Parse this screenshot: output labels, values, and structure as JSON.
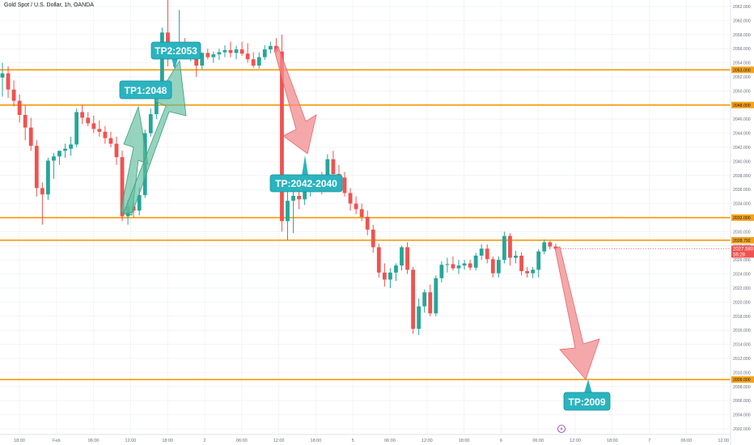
{
  "header": {
    "title": "Gold Spot / U.S. Dollar, 1h, OANDA"
  },
  "chart_data": {
    "type": "candlestick",
    "title": "Gold Spot / U.S. Dollar, 1h, OANDA",
    "colors": {
      "up": "#26a69a",
      "down": "#ef5350",
      "level": "#f7a21b",
      "tp_bg": "#2ab4c0",
      "up_arrow": "#5dbd9c",
      "down_arrow": "#f28b8e"
    },
    "ylim": [
      2001,
      2063
    ],
    "y_ticks": [
      "2062.000",
      "2060.000",
      "2058.000",
      "2056.000",
      "2054.000",
      "2052.000",
      "2050.000",
      "2048.000",
      "2046.000",
      "2044.000",
      "2042.000",
      "2040.000",
      "2038.000",
      "2036.000",
      "2034.000",
      "2032.000",
      "2030.000",
      "2028.000",
      "2026.000",
      "2024.000",
      "2022.000",
      "2020.000",
      "2018.000",
      "2016.000",
      "2014.000",
      "2012.000",
      "2010.000",
      "2008.000",
      "2006.000",
      "2004.000",
      "2002.000"
    ],
    "x_ticks": [
      "18:00",
      "Feb",
      "06:00",
      "12:00",
      "18:00",
      "2",
      "06:00",
      "12:00",
      "18:00",
      "5",
      "06:00",
      "12:00",
      "18:00",
      "6",
      "06:00",
      "12:00",
      "18:00",
      "7",
      "06:00",
      "12:00"
    ],
    "levels": [
      {
        "price": 2053.0,
        "label": "2053.000"
      },
      {
        "price": 2048.0,
        "label": "2048.000"
      },
      {
        "price": 2032.0,
        "label": "2032.000"
      },
      {
        "price": 2028.792,
        "label": "2028.792"
      },
      {
        "price": 2009.0,
        "label": "2009.000"
      }
    ],
    "current_price": {
      "price": "2027.580",
      "countdown": "56:28",
      "value": 2027.58
    },
    "annotations": [
      {
        "text": "TP2:2053"
      },
      {
        "text": "TP1:2048"
      },
      {
        "text": "TP:2042-2040"
      },
      {
        "text": "TP:2009"
      }
    ],
    "candles": [
      {
        "o": 2051.9,
        "h": 2054,
        "l": 2049.2,
        "c": 2052.5
      },
      {
        "o": 2052.5,
        "h": 2053.5,
        "l": 2049,
        "c": 2050.2
      },
      {
        "o": 2050.2,
        "h": 2051.5,
        "l": 2047.8,
        "c": 2048.6
      },
      {
        "o": 2048.6,
        "h": 2049.5,
        "l": 2045.5,
        "c": 2046.6
      },
      {
        "o": 2046.6,
        "h": 2048,
        "l": 2043,
        "c": 2044.8
      },
      {
        "o": 2044.8,
        "h": 2046.2,
        "l": 2041.5,
        "c": 2042.2
      },
      {
        "o": 2042.2,
        "h": 2043,
        "l": 2035,
        "c": 2036.2
      },
      {
        "o": 2036.2,
        "h": 2037,
        "l": 2031,
        "c": 2035.3
      },
      {
        "o": 2035.3,
        "h": 2040.5,
        "l": 2034.5,
        "c": 2040.1
      },
      {
        "o": 2040.1,
        "h": 2041.2,
        "l": 2037.5,
        "c": 2040.7
      },
      {
        "o": 2040.7,
        "h": 2041.5,
        "l": 2039.5,
        "c": 2041.5
      },
      {
        "o": 2041.5,
        "h": 2042.5,
        "l": 2040.5,
        "c": 2041.8
      },
      {
        "o": 2041.8,
        "h": 2043.5,
        "l": 2040.8,
        "c": 2042.4
      },
      {
        "o": 2042.4,
        "h": 2047.5,
        "l": 2042,
        "c": 2047
      },
      {
        "o": 2047,
        "h": 2048,
        "l": 2045.3,
        "c": 2046.2
      },
      {
        "o": 2046.2,
        "h": 2047,
        "l": 2045,
        "c": 2045.4
      },
      {
        "o": 2045.4,
        "h": 2046.5,
        "l": 2044,
        "c": 2044.6
      },
      {
        "o": 2044.6,
        "h": 2045.8,
        "l": 2043.5,
        "c": 2044.2
      },
      {
        "o": 2044.2,
        "h": 2045,
        "l": 2042.5,
        "c": 2043.3
      },
      {
        "o": 2043.3,
        "h": 2044.2,
        "l": 2042,
        "c": 2042.5
      },
      {
        "o": 2042.5,
        "h": 2043.5,
        "l": 2039.5,
        "c": 2040.6
      },
      {
        "o": 2040.6,
        "h": 2041.5,
        "l": 2031.5,
        "c": 2032.2
      },
      {
        "o": 2032.2,
        "h": 2034.5,
        "l": 2031,
        "c": 2033.6
      },
      {
        "o": 2033.6,
        "h": 2034.5,
        "l": 2032,
        "c": 2033
      },
      {
        "o": 2033,
        "h": 2036.3,
        "l": 2032.3,
        "c": 2035.2
      },
      {
        "o": 2035.2,
        "h": 2044.5,
        "l": 2034.8,
        "c": 2044
      },
      {
        "o": 2044,
        "h": 2047.5,
        "l": 2043.5,
        "c": 2046.7
      },
      {
        "o": 2046.7,
        "h": 2050,
        "l": 2046,
        "c": 2049.6
      },
      {
        "o": 2049.6,
        "h": 2059,
        "l": 2049,
        "c": 2058.3
      },
      {
        "o": 2058.3,
        "h": 2063,
        "l": 2053.5,
        "c": 2054.5
      },
      {
        "o": 2054.5,
        "h": 2056,
        "l": 2053.5,
        "c": 2055.2
      },
      {
        "o": 2055.2,
        "h": 2061.5,
        "l": 2054.8,
        "c": 2055.8
      },
      {
        "o": 2055.8,
        "h": 2057.5,
        "l": 2054.5,
        "c": 2055.3
      },
      {
        "o": 2055.3,
        "h": 2056.5,
        "l": 2054.2,
        "c": 2055.8
      },
      {
        "o": 2055.8,
        "h": 2056.3,
        "l": 2052,
        "c": 2053.6
      },
      {
        "o": 2053.6,
        "h": 2055.5,
        "l": 2053,
        "c": 2055.4
      },
      {
        "o": 2055.4,
        "h": 2056,
        "l": 2054.5,
        "c": 2054.8
      },
      {
        "o": 2054.8,
        "h": 2055.6,
        "l": 2054,
        "c": 2055.2
      },
      {
        "o": 2055.2,
        "h": 2056,
        "l": 2054.4,
        "c": 2055.5
      },
      {
        "o": 2055.5,
        "h": 2056.5,
        "l": 2054.8,
        "c": 2055.8
      },
      {
        "o": 2055.8,
        "h": 2057,
        "l": 2054.8,
        "c": 2055.4
      },
      {
        "o": 2055.4,
        "h": 2056.4,
        "l": 2054.5,
        "c": 2055.9
      },
      {
        "o": 2055.9,
        "h": 2057,
        "l": 2055,
        "c": 2055.3
      },
      {
        "o": 2055.3,
        "h": 2056.8,
        "l": 2054,
        "c": 2054.5
      },
      {
        "o": 2054.5,
        "h": 2055.5,
        "l": 2053.3,
        "c": 2053.6
      },
      {
        "o": 2053.6,
        "h": 2055.5,
        "l": 2053.2,
        "c": 2054.8
      },
      {
        "o": 2054.8,
        "h": 2056.5,
        "l": 2054.4,
        "c": 2055.9
      },
      {
        "o": 2055.9,
        "h": 2057,
        "l": 2055.3,
        "c": 2056.4
      },
      {
        "o": 2056.4,
        "h": 2057.5,
        "l": 2055.3,
        "c": 2055.6
      },
      {
        "o": 2055.6,
        "h": 2058,
        "l": 2030,
        "c": 2031.5
      },
      {
        "o": 2031.5,
        "h": 2036,
        "l": 2028.8,
        "c": 2034.4
      },
      {
        "o": 2034.4,
        "h": 2036,
        "l": 2029.8,
        "c": 2035.1
      },
      {
        "o": 2035.1,
        "h": 2036.5,
        "l": 2033.2,
        "c": 2034.6
      },
      {
        "o": 2034.6,
        "h": 2036.6,
        "l": 2033.8,
        "c": 2036
      },
      {
        "o": 2036,
        "h": 2037.5,
        "l": 2035,
        "c": 2036.9
      },
      {
        "o": 2036.9,
        "h": 2038,
        "l": 2036,
        "c": 2037.5
      },
      {
        "o": 2037.5,
        "h": 2038.5,
        "l": 2035.3,
        "c": 2036.4
      },
      {
        "o": 2036.4,
        "h": 2041,
        "l": 2036,
        "c": 2040.3
      },
      {
        "o": 2040.3,
        "h": 2041.5,
        "l": 2037.5,
        "c": 2038.2
      },
      {
        "o": 2038.2,
        "h": 2039.5,
        "l": 2036.5,
        "c": 2037.7
      },
      {
        "o": 2037.7,
        "h": 2038.5,
        "l": 2035,
        "c": 2035.5
      },
      {
        "o": 2035.5,
        "h": 2036.2,
        "l": 2033,
        "c": 2034
      },
      {
        "o": 2034,
        "h": 2035,
        "l": 2032.5,
        "c": 2033.2
      },
      {
        "o": 2033.2,
        "h": 2034,
        "l": 2031.5,
        "c": 2032.1
      },
      {
        "o": 2032.1,
        "h": 2033,
        "l": 2029.5,
        "c": 2030.3
      },
      {
        "o": 2030.3,
        "h": 2031,
        "l": 2027,
        "c": 2027.8
      },
      {
        "o": 2027.8,
        "h": 2028.3,
        "l": 2023.5,
        "c": 2024.2
      },
      {
        "o": 2024.2,
        "h": 2025.5,
        "l": 2022.2,
        "c": 2023.2
      },
      {
        "o": 2023.2,
        "h": 2024.8,
        "l": 2022,
        "c": 2024.2
      },
      {
        "o": 2024.2,
        "h": 2025.5,
        "l": 2023,
        "c": 2025.2
      },
      {
        "o": 2025.2,
        "h": 2028,
        "l": 2024.5,
        "c": 2027.8
      },
      {
        "o": 2027.8,
        "h": 2028.5,
        "l": 2024,
        "c": 2024.6
      },
      {
        "o": 2024.6,
        "h": 2025,
        "l": 2015.5,
        "c": 2016.2
      },
      {
        "o": 2016.2,
        "h": 2020.5,
        "l": 2015.3,
        "c": 2019.4
      },
      {
        "o": 2019.4,
        "h": 2021.8,
        "l": 2018.5,
        "c": 2021.4
      },
      {
        "o": 2021.4,
        "h": 2022.5,
        "l": 2018,
        "c": 2018.4
      },
      {
        "o": 2018.4,
        "h": 2023.8,
        "l": 2018,
        "c": 2023.4
      },
      {
        "o": 2023.4,
        "h": 2025.8,
        "l": 2022.8,
        "c": 2025.3
      },
      {
        "o": 2025.3,
        "h": 2026.3,
        "l": 2024.2,
        "c": 2025.4
      },
      {
        "o": 2025.4,
        "h": 2026.5,
        "l": 2024.5,
        "c": 2024.8
      },
      {
        "o": 2024.8,
        "h": 2026,
        "l": 2024,
        "c": 2025.2
      },
      {
        "o": 2025.2,
        "h": 2026,
        "l": 2024.6,
        "c": 2025.5
      },
      {
        "o": 2025.5,
        "h": 2026,
        "l": 2024.5,
        "c": 2024.9
      },
      {
        "o": 2024.9,
        "h": 2027,
        "l": 2024.5,
        "c": 2026.6
      },
      {
        "o": 2026.6,
        "h": 2028.2,
        "l": 2026,
        "c": 2027.6
      },
      {
        "o": 2027.6,
        "h": 2028.2,
        "l": 2025.5,
        "c": 2026.1
      },
      {
        "o": 2026.1,
        "h": 2026.5,
        "l": 2023.5,
        "c": 2024.1
      },
      {
        "o": 2024.1,
        "h": 2026.5,
        "l": 2023.5,
        "c": 2026
      },
      {
        "o": 2026,
        "h": 2030,
        "l": 2025.5,
        "c": 2029.4
      },
      {
        "o": 2029.4,
        "h": 2029.8,
        "l": 2025.2,
        "c": 2026.3
      },
      {
        "o": 2026.3,
        "h": 2027.3,
        "l": 2025.5,
        "c": 2026.6
      },
      {
        "o": 2026.6,
        "h": 2027.1,
        "l": 2023.8,
        "c": 2024.4
      },
      {
        "o": 2024.4,
        "h": 2025,
        "l": 2023.5,
        "c": 2024.1
      },
      {
        "o": 2024.1,
        "h": 2025,
        "l": 2023.4,
        "c": 2024.6
      },
      {
        "o": 2024.6,
        "h": 2027.5,
        "l": 2023.5,
        "c": 2027.2
      },
      {
        "o": 2027.2,
        "h": 2028.9,
        "l": 2026.8,
        "c": 2028.5
      },
      {
        "o": 2028.5,
        "h": 2028.7,
        "l": 2027.5,
        "c": 2027.9
      },
      {
        "o": 2027.9,
        "h": 2028.3,
        "l": 2027.4,
        "c": 2027.58
      }
    ]
  }
}
